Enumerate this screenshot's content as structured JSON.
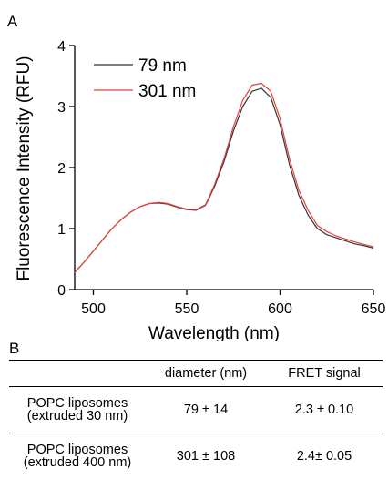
{
  "panel_a_label": "A",
  "panel_b_label": "B",
  "chart_data": {
    "type": "line",
    "title": "",
    "xlabel": "Wavelength (nm)",
    "ylabel": "Fluorescence Intensity (RFU)",
    "xlim": [
      490,
      650
    ],
    "ylim": [
      0,
      4
    ],
    "xticks": [
      500,
      550,
      600,
      650
    ],
    "yticks": [
      0,
      1,
      2,
      3,
      4
    ],
    "grid": false,
    "legend": "top-left",
    "series": [
      {
        "name": "79 nm",
        "color": "#333333",
        "x": [
          490,
          495,
          500,
          505,
          510,
          515,
          520,
          525,
          530,
          535,
          540,
          545,
          550,
          555,
          560,
          562,
          565,
          570,
          575,
          580,
          585,
          590,
          595,
          600,
          605,
          610,
          615,
          620,
          625,
          630,
          635,
          640,
          645,
          650
        ],
        "y": [
          0.28,
          0.45,
          0.63,
          0.82,
          1.0,
          1.15,
          1.27,
          1.36,
          1.41,
          1.42,
          1.4,
          1.35,
          1.31,
          1.3,
          1.38,
          1.5,
          1.7,
          2.1,
          2.6,
          3.0,
          3.25,
          3.3,
          3.15,
          2.7,
          2.05,
          1.55,
          1.22,
          1.0,
          0.9,
          0.85,
          0.8,
          0.75,
          0.72,
          0.68
        ]
      },
      {
        "name": "301 nm",
        "color": "#e8413a",
        "x": [
          490,
          495,
          500,
          505,
          510,
          515,
          520,
          525,
          530,
          535,
          540,
          545,
          550,
          555,
          560,
          562,
          565,
          570,
          575,
          580,
          585,
          590,
          595,
          600,
          605,
          610,
          615,
          620,
          625,
          630,
          635,
          640,
          645,
          650
        ],
        "y": [
          0.28,
          0.45,
          0.63,
          0.82,
          1.0,
          1.15,
          1.27,
          1.36,
          1.41,
          1.43,
          1.41,
          1.36,
          1.32,
          1.31,
          1.39,
          1.52,
          1.73,
          2.15,
          2.67,
          3.1,
          3.35,
          3.38,
          3.25,
          2.8,
          2.15,
          1.63,
          1.3,
          1.05,
          0.95,
          0.88,
          0.83,
          0.78,
          0.74,
          0.7
        ]
      }
    ]
  },
  "table": {
    "headers": [
      "",
      "diameter (nm)",
      "FRET signal"
    ],
    "rows": [
      {
        "name_line1": "POPC liposomes",
        "name_line2": "(extruded 30 nm)",
        "diameter": "79 ± 14",
        "fret": "2.3 ± 0.10"
      },
      {
        "name_line1": "POPC liposomes",
        "name_line2": "(extruded 400 nm)",
        "diameter": "301 ± 108",
        "fret": "2.4± 0.05"
      }
    ]
  }
}
